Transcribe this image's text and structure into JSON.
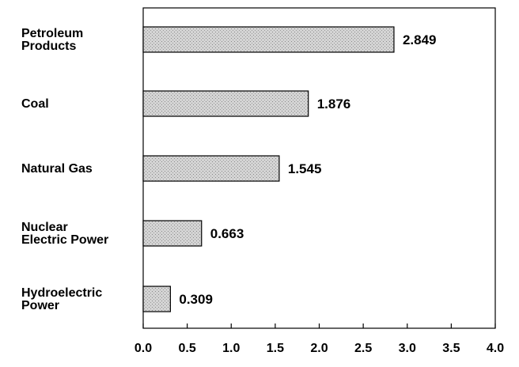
{
  "chart_data": {
    "type": "bar",
    "orientation": "horizontal",
    "title": "",
    "xlabel": "",
    "ylabel": "",
    "categories": [
      [
        "Petroleum",
        "Products"
      ],
      [
        "Coal"
      ],
      [
        "Natural Gas"
      ],
      [
        "Nuclear",
        "Electric Power"
      ],
      [
        "Hydroelectric",
        "Power"
      ]
    ],
    "values": [
      2.849,
      1.876,
      1.545,
      0.663,
      0.309
    ],
    "value_labels": [
      "2.849",
      "1.876",
      "1.545",
      "0.663",
      "0.309"
    ],
    "xlim": [
      0,
      4.0
    ],
    "xticks": [
      "0.0",
      "0.5",
      "1.0",
      "1.5",
      "2.0",
      "2.5",
      "3.0",
      "3.5",
      "4.0"
    ],
    "grid": false,
    "legend": "none",
    "bar_color": "#cfcfcf",
    "bar_edge_color": "#000000"
  }
}
